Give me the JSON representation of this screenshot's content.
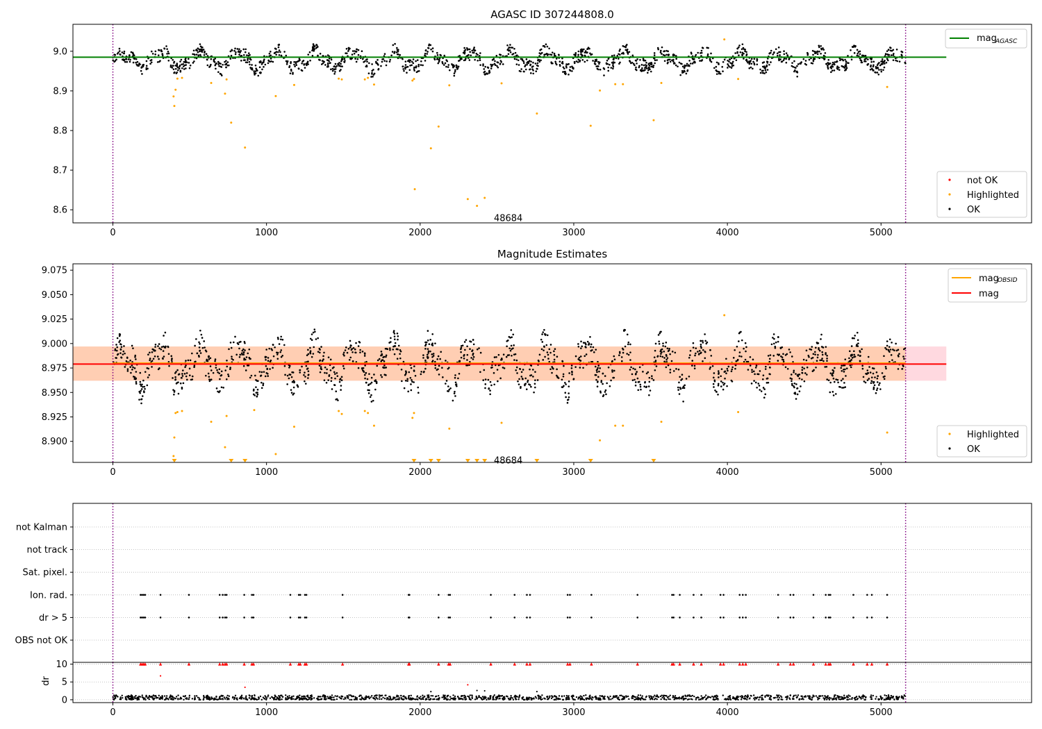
{
  "chart_data": [
    {
      "type": "scatter",
      "title": "AGASC ID 307244808.0",
      "xlim": [
        -260,
        5980
      ],
      "ylim": [
        8.567,
        9.068
      ],
      "xticks": [
        0,
        1000,
        2000,
        3000,
        4000,
        5000
      ],
      "yticks": [
        8.6,
        8.7,
        8.8,
        8.9,
        9.0
      ],
      "ytick_labels": [
        "8.6",
        "8.7",
        "8.8",
        "8.9",
        "9.0"
      ],
      "vlines": [
        0,
        5160
      ],
      "hline": {
        "y": 8.985,
        "x": [
          -260,
          5425
        ],
        "color": "#008000",
        "label": "mag",
        "sub": "AGASC"
      },
      "annotation": {
        "text": "48684",
        "x": 2480,
        "y": 8.585
      },
      "legend_lines": [
        {
          "label": "mag",
          "sub": "AGASC",
          "color": "#008000"
        }
      ],
      "legend_points": [
        {
          "label": "not OK",
          "color": "#ff0000"
        },
        {
          "label": "Highlighted",
          "color": "#ffa500"
        },
        {
          "label": "OK",
          "color": "#000000"
        }
      ],
      "series": [
        {
          "name": "OK",
          "color": "#000000",
          "band": [
            8.93,
            9.025
          ],
          "n": 1600
        },
        {
          "name": "Highlighted",
          "color": "#ffa500",
          "x": [
            395,
            400,
            408,
            420,
            450,
            640,
            730,
            740,
            770,
            860,
            1060,
            1180,
            1470,
            1490,
            1640,
            1660,
            1700,
            1950,
            1960,
            1965,
            2070,
            2120,
            2190,
            2310,
            2370,
            2420,
            2530,
            2760,
            3110,
            3170,
            3270,
            3320,
            3520,
            3570,
            3980,
            4070,
            5040
          ],
          "y": [
            8.886,
            8.862,
            8.903,
            8.931,
            8.933,
            8.92,
            8.893,
            8.929,
            8.82,
            8.757,
            8.887,
            8.915,
            8.931,
            8.929,
            8.929,
            8.933,
            8.916,
            8.926,
            8.93,
            8.652,
            8.755,
            8.81,
            8.914,
            8.627,
            8.61,
            8.63,
            8.919,
            8.843,
            8.812,
            8.901,
            8.917,
            8.917,
            8.826,
            8.92,
            9.03,
            8.93,
            8.91
          ]
        }
      ]
    },
    {
      "type": "scatter",
      "title": "Magnitude Estimates",
      "xlim": [
        -260,
        5980
      ],
      "ylim": [
        8.8785,
        9.0815
      ],
      "xticks": [
        0,
        1000,
        2000,
        3000,
        4000,
        5000
      ],
      "yticks": [
        8.9,
        8.925,
        8.95,
        8.975,
        9.0,
        9.025,
        9.05,
        9.075
      ],
      "ytick_labels": [
        "8.900",
        "8.925",
        "8.950",
        "8.975",
        "9.000",
        "9.025",
        "9.050",
        "9.075"
      ],
      "vlines": [
        0,
        5160
      ],
      "band": {
        "y": [
          8.962,
          8.997
        ],
        "x": [
          -260,
          5425
        ]
      },
      "hline": {
        "y": 8.979,
        "x": [
          -260,
          5425
        ],
        "color": "#ff0000",
        "label": "mag"
      },
      "annotation": {
        "text": "48684",
        "x": 2480,
        "y": 8.883
      },
      "legend_lines": [
        {
          "label": "mag",
          "sub": "OBSID",
          "color": "#ffa500"
        },
        {
          "label": "mag",
          "sub": "",
          "color": "#ff0000"
        }
      ],
      "legend_points": [
        {
          "label": "Highlighted",
          "color": "#ffa500"
        },
        {
          "label": "OK",
          "color": "#000000"
        }
      ],
      "series": [
        {
          "name": "OK",
          "color": "#000000",
          "band": [
            8.935,
            9.02
          ],
          "n": 1600
        },
        {
          "name": "Highlighted",
          "color": "#ffa500",
          "x": [
            395,
            400,
            408,
            420,
            450,
            640,
            730,
            740,
            920,
            1060,
            1180,
            1470,
            1490,
            1640,
            1660,
            1700,
            1950,
            1960,
            2190,
            2530,
            3170,
            3270,
            3320,
            3570,
            3980,
            4070,
            5040
          ],
          "y": [
            8.885,
            8.904,
            8.929,
            8.93,
            8.931,
            8.92,
            8.894,
            8.926,
            8.932,
            8.887,
            8.915,
            8.931,
            8.928,
            8.931,
            8.929,
            8.916,
            8.924,
            8.929,
            8.913,
            8.919,
            8.901,
            8.916,
            8.916,
            8.92,
            9.029,
            8.93,
            8.909
          ]
        },
        {
          "name": "Clipped",
          "color": "#ffa500",
          "marker": "triangle-down",
          "x": [
            400,
            770,
            860,
            1960,
            2070,
            2120,
            2310,
            2370,
            2420,
            2760,
            3110,
            3520
          ],
          "y": [
            8.8785,
            8.8785,
            8.8785,
            8.8785,
            8.8785,
            8.8785,
            8.8785,
            8.8785,
            8.8785,
            8.8785,
            8.8785,
            8.8785
          ]
        }
      ]
    },
    {
      "type": "scatter",
      "xlim": [
        -260,
        5980
      ],
      "xticks": [
        0,
        1000,
        2000,
        3000,
        4000,
        5000
      ],
      "categories": [
        "OBS not OK",
        "dr > 5",
        "Ion. rad.",
        "Sat. pixel.",
        "not track",
        "not Kalman"
      ],
      "vlines": [
        0,
        5160
      ],
      "flag_x": [
        180,
        190,
        200,
        210,
        310,
        495,
        695,
        715,
        730,
        740,
        855,
        905,
        915,
        1155,
        1210,
        1220,
        1250,
        1260,
        1495,
        1925,
        1930,
        2120,
        2185,
        2195,
        2460,
        2615,
        2695,
        2715,
        2960,
        2975,
        3115,
        3415,
        3640,
        3650,
        3690,
        3780,
        3830,
        3955,
        3975,
        4080,
        4100,
        4120,
        4330,
        4410,
        4430,
        4560,
        4640,
        4660,
        4670,
        4820,
        4910,
        4940,
        5040
      ],
      "flag_rows": [
        "dr > 5",
        "Ion. rad."
      ]
    },
    {
      "type": "scatter",
      "ylabel": "dr",
      "xlim": [
        -260,
        5980
      ],
      "ylim": [
        -0.8,
        10.5
      ],
      "xticks": [
        0,
        1000,
        2000,
        3000,
        4000,
        5000
      ],
      "yticks": [
        0,
        5,
        10
      ],
      "ytick_labels": [
        "0",
        "5",
        "10"
      ],
      "vlines": [
        0,
        5160
      ],
      "series": [
        {
          "name": "OK",
          "color": "#000000",
          "band": [
            0,
            1.3
          ],
          "n": 1400
        },
        {
          "name": "not OK",
          "color": "#ff0000",
          "marker": "triangle-up",
          "clip": 10
        },
        {
          "name": "not OK",
          "color": "#ff0000",
          "x": [
            310,
            860,
            2310
          ],
          "y": [
            6.7,
            3.5,
            4.2
          ]
        },
        {
          "name": "OK",
          "color": "#000000",
          "x": [
            2070,
            2370,
            2420,
            2760
          ],
          "y": [
            2.3,
            2.6,
            2.5,
            2.3
          ]
        }
      ]
    }
  ]
}
